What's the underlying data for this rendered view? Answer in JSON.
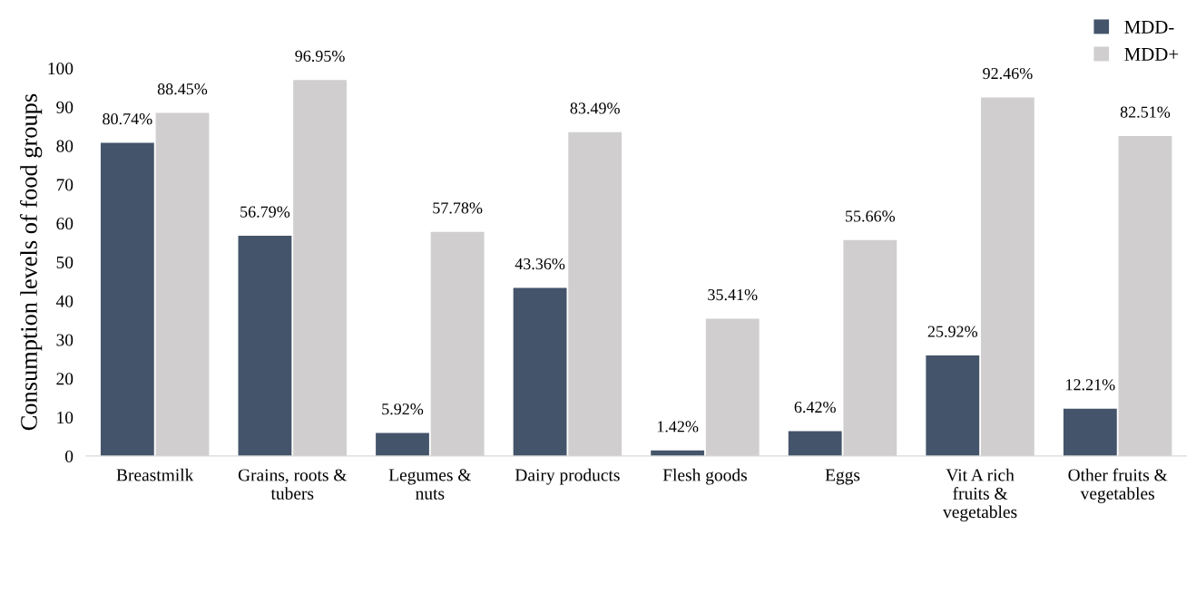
{
  "chart_data": {
    "type": "bar",
    "ylabel": "Consumption levels of food groups",
    "categories": [
      "Breastmilk",
      "Grains, roots &\ntubers",
      "Legumes &\nnuts",
      "Dairy products",
      "Flesh goods",
      "Eggs",
      "Vit A rich\nfruits &\nvegetables",
      "Other fruits &\nvegetables"
    ],
    "series": [
      {
        "name": "MDD-",
        "color": "#44546a",
        "values": [
          80.74,
          56.79,
          5.92,
          43.36,
          1.42,
          6.42,
          25.92,
          12.21
        ],
        "value_labels": [
          "80.74%",
          "56.79%",
          "5.92%",
          "43.36%",
          "1.42%",
          "6.42%",
          "25.92%",
          "12.21%"
        ]
      },
      {
        "name": "MDD+",
        "color": "#d0cece",
        "values": [
          88.45,
          96.95,
          57.78,
          83.49,
          35.41,
          55.66,
          92.46,
          82.51
        ],
        "value_labels": [
          "88.45%",
          "96.95%",
          "57.78%",
          "83.49%",
          "35.41%",
          "55.66%",
          "92.46%",
          "82.51%"
        ]
      }
    ],
    "ylim": [
      0,
      100
    ],
    "yticks": [
      0,
      10,
      20,
      30,
      40,
      50,
      60,
      70,
      80,
      90,
      100
    ],
    "grid": false,
    "legend": "top right"
  }
}
